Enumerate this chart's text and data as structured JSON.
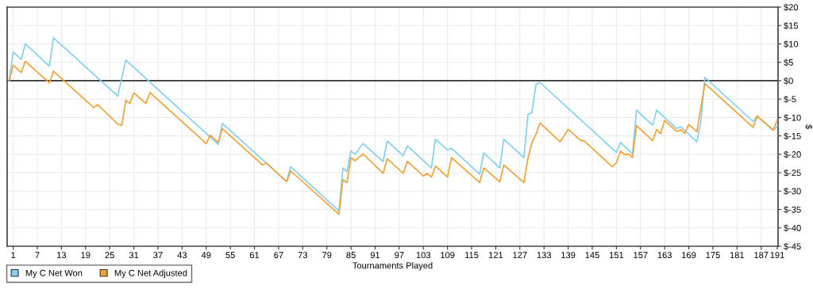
{
  "chart_data": {
    "type": "line",
    "xlabel": "Tournaments Played",
    "ylabel": "$",
    "xlim": [
      -0.5,
      191.2
    ],
    "xticks": [
      1,
      7,
      13,
      19,
      25,
      31,
      37,
      43,
      49,
      55,
      61,
      67,
      73,
      79,
      85,
      91,
      97,
      103,
      109,
      115,
      121,
      127,
      133,
      139,
      145,
      151,
      157,
      163,
      169,
      175,
      181,
      187,
      191
    ],
    "ylim": [
      -45,
      20
    ],
    "yticks": [
      {
        "value": 20,
        "label": "$20"
      },
      {
        "value": 15,
        "label": "$15"
      },
      {
        "value": 10,
        "label": "$10"
      },
      {
        "value": 5,
        "label": "$5"
      },
      {
        "value": 0,
        "label": "$0"
      },
      {
        "value": -5,
        "label": "$-5"
      },
      {
        "value": -10,
        "label": "$-10"
      },
      {
        "value": -15,
        "label": "$-15"
      },
      {
        "value": -20,
        "label": "$-20"
      },
      {
        "value": -25,
        "label": "$-25"
      },
      {
        "value": -30,
        "label": "$-30"
      },
      {
        "value": -35,
        "label": "$-35"
      },
      {
        "value": -40,
        "label": "$-40"
      },
      {
        "value": -45,
        "label": "$-45"
      }
    ],
    "grid": true,
    "legend": "bottom left",
    "marker": "none",
    "line_style": "solid",
    "ref_lines": [
      {
        "axis": "y",
        "value": 0,
        "color": "#333333"
      }
    ],
    "series": [
      {
        "name": "My C Net Won",
        "color": "#7fd0f5",
        "x": [
          0,
          1,
          3,
          4,
          10,
          11,
          27,
          29,
          52,
          53,
          69,
          70,
          82,
          83,
          84,
          85,
          86,
          88,
          93,
          94,
          98,
          99,
          105,
          106,
          109,
          110,
          117,
          118,
          122,
          123,
          128,
          129,
          130,
          131,
          132,
          151,
          152,
          155,
          156,
          160,
          161,
          166,
          167,
          171,
          172,
          173,
          185,
          186,
          190,
          191
        ],
        "values": [
          0,
          7.8,
          5.8,
          10,
          4.0,
          11.7,
          -4.2,
          5.6,
          -17.3,
          -11.6,
          -27.4,
          -23.4,
          -35.4,
          -23.7,
          -24.7,
          -19.1,
          -20,
          -17.1,
          -22,
          -16.4,
          -20.4,
          -17.7,
          -23.7,
          -15.9,
          -18.8,
          -18.4,
          -25.4,
          -19.6,
          -23.7,
          -15.9,
          -20.9,
          -9.2,
          -8.7,
          -1.0,
          -0.5,
          -19.5,
          -16.8,
          -19.9,
          -8.0,
          -12.1,
          -8.0,
          -13.0,
          -12.5,
          -16.6,
          -11,
          0.9,
          -11.1,
          -9.6,
          -13.5,
          -12.3
        ]
      },
      {
        "name": "My C Net Adjusted",
        "color": "#f7a030",
        "x": [
          0,
          1,
          3,
          4,
          10,
          11,
          21,
          22,
          27,
          28,
          29,
          30,
          31,
          34,
          35,
          49,
          50,
          52,
          53,
          63,
          64,
          69,
          70,
          82,
          83,
          84,
          85,
          86,
          88,
          93,
          94,
          98,
          99,
          103,
          104,
          105,
          106,
          109,
          110,
          117,
          118,
          122,
          123,
          128,
          129,
          130,
          131,
          132,
          137,
          138,
          139,
          142,
          143,
          150,
          151,
          152,
          153,
          154,
          155,
          156,
          160,
          161,
          162,
          163,
          166,
          167,
          168,
          169,
          171,
          173,
          185,
          186,
          190,
          191
        ],
        "values": [
          0,
          4.2,
          2.2,
          5.3,
          -0.6,
          2.6,
          -7.3,
          -6.5,
          -11.8,
          -12.1,
          -5.3,
          -6.2,
          -3.3,
          -6.2,
          -3.2,
          -17.1,
          -14.8,
          -16.8,
          -13.0,
          -22.9,
          -22.4,
          -27.5,
          -24.5,
          -36.3,
          -26.9,
          -27.7,
          -20.9,
          -21.8,
          -19.9,
          -25.2,
          -21.2,
          -25.2,
          -21.9,
          -25.9,
          -25.2,
          -26.2,
          -23.2,
          -26.2,
          -20.9,
          -27.7,
          -23.7,
          -27.5,
          -22.9,
          -27.7,
          -21.1,
          -16.8,
          -14.6,
          -11.5,
          -16.6,
          -15.0,
          -13.2,
          -16.2,
          -16.4,
          -23.4,
          -22.3,
          -19.1,
          -20.1,
          -19.9,
          -20.9,
          -12.2,
          -16.3,
          -13.3,
          -14.4,
          -10.8,
          -13.8,
          -13.3,
          -14.3,
          -11.9,
          -13.9,
          -0.8,
          -12.7,
          -9.6,
          -13.4,
          -10.7
        ]
      }
    ]
  }
}
